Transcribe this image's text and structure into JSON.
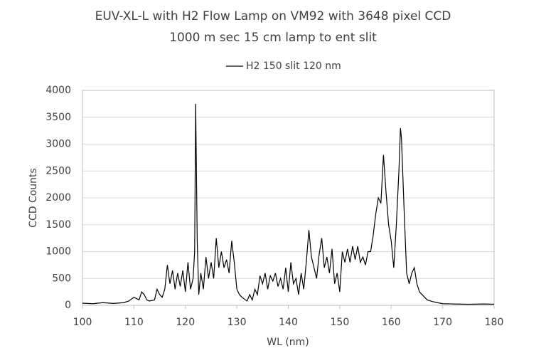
{
  "chart_data": {
    "type": "line",
    "title": "EUV-XL-L with H2 Flow Lamp on VM92 with 3648 pixel CCD",
    "subtitle": "1000 m sec 15 cm lamp to ent slit",
    "x_label": "WL (nm)",
    "y_label": "CCD Counts",
    "x": [
      100,
      102,
      104,
      106,
      108,
      109,
      110,
      111,
      111.5,
      112,
      112.5,
      113,
      114,
      114.5,
      115,
      115.5,
      116,
      116.5,
      117,
      117.5,
      118,
      118.5,
      119,
      119.5,
      120,
      120.5,
      121,
      121.5,
      121.8,
      122,
      122.3,
      122.6,
      123,
      123.5,
      124,
      124.5,
      125,
      125.5,
      126,
      126.5,
      127,
      127.5,
      128,
      128.5,
      129,
      129.5,
      130,
      130.5,
      131,
      132,
      132.5,
      133,
      133.5,
      134,
      134.5,
      135,
      135.5,
      136,
      136.5,
      137,
      137.5,
      138,
      138.5,
      139,
      139.5,
      140,
      140.5,
      141,
      141.5,
      142,
      142.5,
      143,
      143.5,
      144,
      144.5,
      145,
      145.5,
      146,
      146.5,
      147,
      147.5,
      148,
      148.5,
      149,
      149.5,
      150,
      150.5,
      151,
      151.5,
      152,
      152.5,
      153,
      153.5,
      154,
      154.5,
      155,
      155.5,
      156,
      156.5,
      157,
      157.5,
      158,
      158.5,
      159,
      159.5,
      160,
      160.5,
      161,
      161.5,
      161.8,
      162,
      162.5,
      163,
      163.5,
      164,
      164.5,
      165,
      165.5,
      166,
      167,
      168,
      169,
      170,
      172,
      175,
      178,
      180
    ],
    "series": [
      {
        "name": "H2 150 slit 120 nm",
        "color": "#000000",
        "values": [
          40,
          30,
          50,
          35,
          50,
          80,
          150,
          100,
          250,
          200,
          100,
          80,
          100,
          300,
          200,
          150,
          300,
          750,
          400,
          650,
          300,
          600,
          350,
          650,
          250,
          800,
          300,
          500,
          1000,
          3750,
          1200,
          200,
          600,
          300,
          900,
          500,
          800,
          500,
          1250,
          700,
          1000,
          700,
          850,
          600,
          1200,
          800,
          300,
          200,
          150,
          80,
          200,
          100,
          300,
          200,
          550,
          400,
          600,
          300,
          550,
          450,
          600,
          350,
          500,
          300,
          700,
          250,
          800,
          400,
          500,
          200,
          600,
          300,
          800,
          1400,
          900,
          700,
          500,
          950,
          1250,
          700,
          900,
          600,
          1050,
          400,
          600,
          250,
          1000,
          800,
          1050,
          800,
          1100,
          850,
          1100,
          800,
          900,
          750,
          1000,
          1000,
          1300,
          1700,
          2000,
          1900,
          2800,
          2100,
          1500,
          1200,
          700,
          1500,
          2500,
          3300,
          3100,
          1800,
          600,
          400,
          600,
          700,
          400,
          250,
          200,
          100,
          70,
          50,
          30,
          25,
          20,
          25,
          20
        ]
      }
    ],
    "xlim": [
      100,
      180
    ],
    "xticks": [
      100,
      110,
      120,
      130,
      140,
      150,
      160,
      170,
      180
    ],
    "ylim": [
      0,
      4000
    ],
    "yticks": [
      0,
      500,
      1000,
      1500,
      2000,
      2500,
      3000,
      3500,
      4000
    ],
    "grid": true,
    "legend": "top"
  }
}
